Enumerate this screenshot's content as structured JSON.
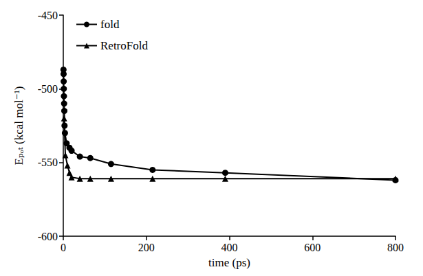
{
  "chart_data": {
    "type": "line",
    "x_label": "time (ps)",
    "y_label": "Eₚₒₜ (kcal mol⁻¹)",
    "xlim": [
      0,
      800
    ],
    "xticks": [
      0,
      200,
      400,
      600,
      800
    ],
    "ylim": [
      -600,
      -450
    ],
    "yticks": [
      -600,
      -550,
      -500,
      -450
    ],
    "grid": false,
    "legend": "upper left",
    "series": [
      {
        "name": "fold",
        "color": "#000000",
        "marker": "circle",
        "line_style": "solid",
        "x": [
          0.5,
          0.8,
          1,
          1.3,
          1.6,
          2,
          2.5,
          3,
          4,
          8,
          15,
          20,
          40,
          65,
          115,
          215,
          390,
          800
        ],
        "values": [
          -487,
          -490,
          -495,
          -500,
          -505,
          -510,
          -515,
          -525,
          -530,
          -537,
          -540,
          -542,
          -546,
          -547,
          -551,
          -555,
          -557,
          -562
        ]
      },
      {
        "name": "RetroFold",
        "color": "#000000",
        "marker": "triangle",
        "line_style": "solid",
        "x": [
          2,
          5,
          10,
          15,
          20,
          40,
          65,
          115,
          215,
          390,
          800
        ],
        "values": [
          -520,
          -545,
          -552,
          -557,
          -560,
          -561,
          -561,
          -561,
          -561,
          -561,
          -561
        ]
      }
    ]
  }
}
